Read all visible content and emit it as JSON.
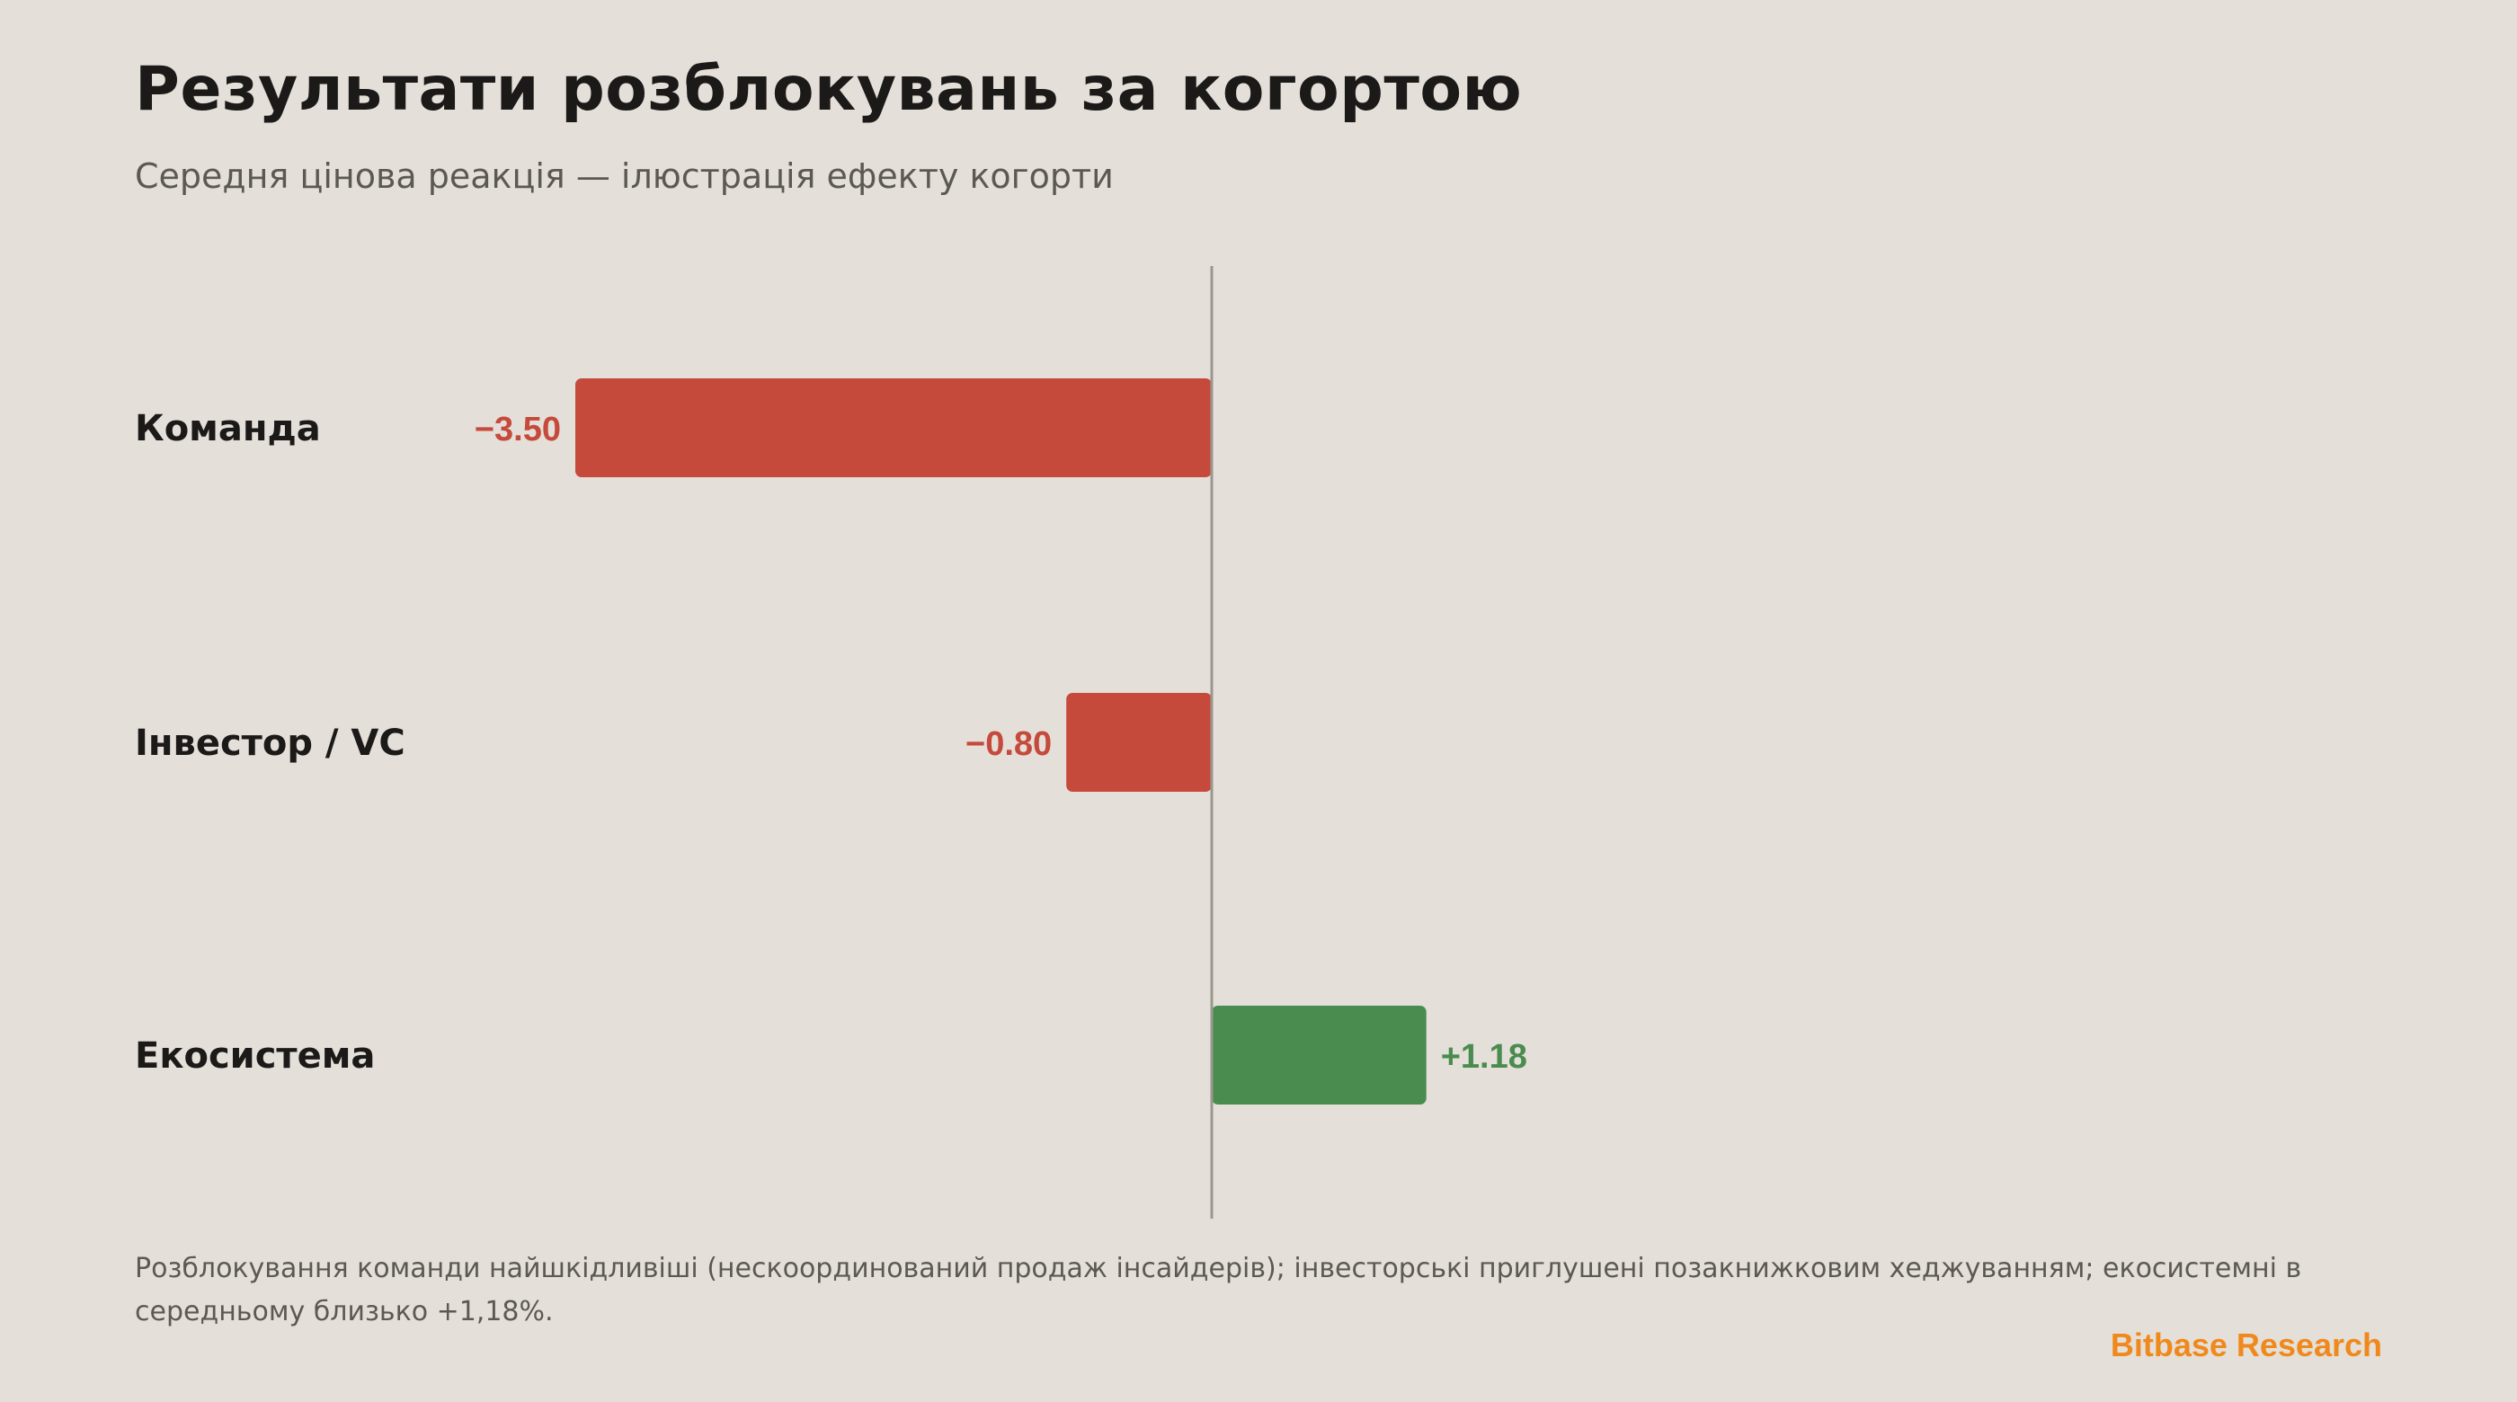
{
  "title": "Результати розблокувань за когортою",
  "subtitle": "Середня цінова реакція — ілюстрація ефекту когорти",
  "footnote": "Розблокування команди найшкідливіші (нескоординований продаж інсайдерів); інвесторські приглушені позакнижковим хеджуванням; екосистемні в середньому близько +1,18%.",
  "brand": "Bitbase Research",
  "colors": {
    "negative": "#c64a3b",
    "positive": "#4a8c4f",
    "zero_line": "#9b978f",
    "brand": "#f0891c"
  },
  "chart_data": {
    "type": "bar",
    "orientation": "horizontal",
    "categories": [
      "Команда",
      "Інвестор / VC",
      "Екосистема"
    ],
    "values": [
      -3.5,
      -0.8,
      1.18
    ],
    "value_labels": [
      "−3.50",
      "−0.80",
      "+1.18"
    ],
    "title": "Результати розблокувань за когортою",
    "subtitle": "Середня цінова реакція — ілюстрація ефекту когорти",
    "xlim": [
      -6.0,
      7.3
    ],
    "grid": false,
    "legend": "none"
  }
}
